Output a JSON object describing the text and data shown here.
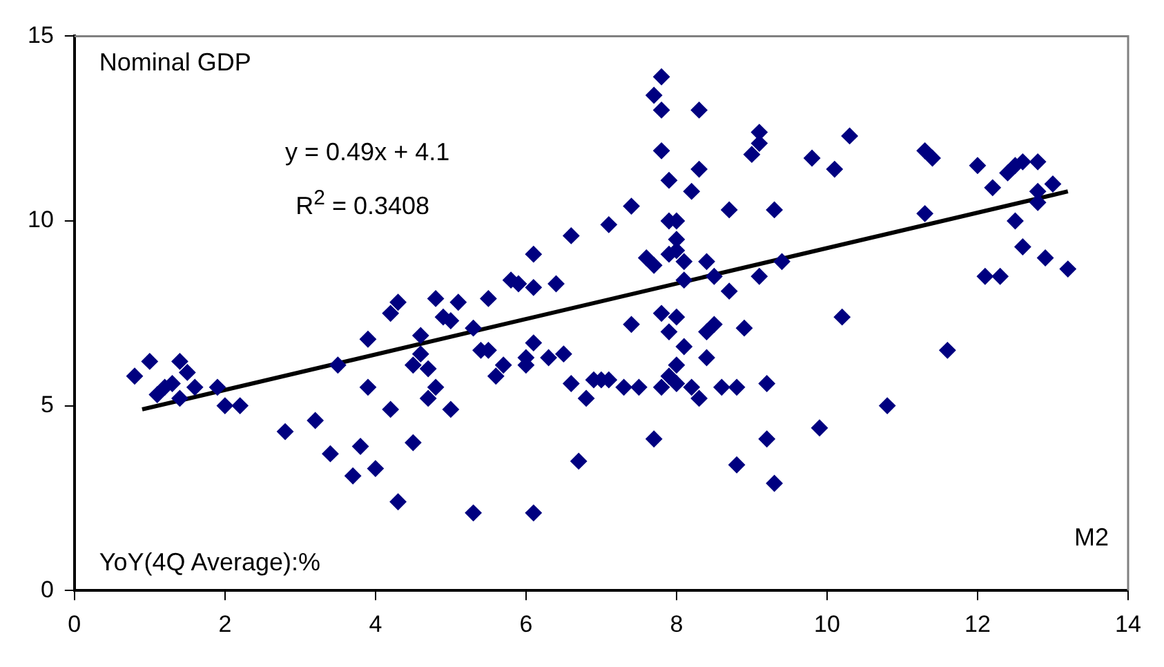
{
  "chart_data": {
    "type": "scatter",
    "xlabel": "M2",
    "ylabel": "Nominal GDP",
    "annotations": [
      "y = 0.49x + 4.1",
      "R$^{2}$ = 0.3408",
      "YoY(4Q Average):%"
    ],
    "xlim": [
      0,
      14
    ],
    "xticks": [
      0,
      2,
      4,
      6,
      8,
      10,
      12,
      14
    ],
    "ylim": [
      0,
      15
    ],
    "yticks": [
      0,
      5,
      10,
      15
    ],
    "grid": false,
    "legend": false,
    "marker": "diamond",
    "series": [
      {
        "color": "#000080",
        "x": [
          0.8,
          1.0,
          1.1,
          1.2,
          1.3,
          1.4,
          1.4,
          1.5,
          1.6,
          1.9,
          2.0,
          2.2,
          2.8,
          3.2,
          3.4,
          3.5,
          3.7,
          3.8,
          3.9,
          4.0,
          3.9,
          4.2,
          4.2,
          4.3,
          4.3,
          4.5,
          4.5,
          4.6,
          4.6,
          4.7,
          4.7,
          4.8,
          4.8,
          4.9,
          5.0,
          5.0,
          5.1,
          5.3,
          5.3,
          5.4,
          5.5,
          5.5,
          5.6,
          5.7,
          5.8,
          5.9,
          6.0,
          6.0,
          6.1,
          6.1,
          6.1,
          6.1,
          6.3,
          6.4,
          6.5,
          6.6,
          6.6,
          6.7,
          6.8,
          6.9,
          7.0,
          7.1,
          7.1,
          7.3,
          7.4,
          7.4,
          7.5,
          7.6,
          7.7,
          7.7,
          7.8,
          7.8,
          7.8,
          7.9,
          7.7,
          7.8,
          7.9,
          7.9,
          8.0,
          8.0,
          8.0,
          8.1,
          8.1,
          8.0,
          7.9,
          8.1,
          8.0,
          7.9,
          7.8,
          8.0,
          8.2,
          8.3,
          8.3,
          8.2,
          8.3,
          8.4,
          8.4,
          8.4,
          8.5,
          8.5,
          8.6,
          8.7,
          8.7,
          8.8,
          8.8,
          8.9,
          9.0,
          9.1,
          9.1,
          9.1,
          9.2,
          9.2,
          9.3,
          9.3,
          9.4,
          9.8,
          9.9,
          10.1,
          10.2,
          10.3,
          10.8,
          11.3,
          11.3,
          11.4,
          11.6,
          12.0,
          12.1,
          12.2,
          12.3,
          12.4,
          12.5,
          12.5,
          12.6,
          12.6,
          12.8,
          12.8,
          12.8,
          12.9,
          13.0,
          13.2
        ],
        "values": [
          5.8,
          6.2,
          5.3,
          5.5,
          5.6,
          6.2,
          5.2,
          5.9,
          5.5,
          5.5,
          5.0,
          5.0,
          4.3,
          4.6,
          3.7,
          6.1,
          3.1,
          3.9,
          6.8,
          3.3,
          5.5,
          4.9,
          7.5,
          7.8,
          2.4,
          4.0,
          6.1,
          6.4,
          6.9,
          5.2,
          6.0,
          7.9,
          5.5,
          7.4,
          7.3,
          4.9,
          7.8,
          2.1,
          7.1,
          6.5,
          7.9,
          6.5,
          5.8,
          6.1,
          8.4,
          8.3,
          6.3,
          6.1,
          8.2,
          9.1,
          6.7,
          2.1,
          6.3,
          8.3,
          6.4,
          9.6,
          5.6,
          3.5,
          5.2,
          5.7,
          5.7,
          9.9,
          5.7,
          5.5,
          10.4,
          7.2,
          5.5,
          9.0,
          4.1,
          13.4,
          13.9,
          13.0,
          11.9,
          11.1,
          8.8,
          7.5,
          10.0,
          9.1,
          10.0,
          9.5,
          9.2,
          8.9,
          8.4,
          7.4,
          7.0,
          6.6,
          6.1,
          5.8,
          5.5,
          5.6,
          5.5,
          5.2,
          13.0,
          10.8,
          11.4,
          8.9,
          7.0,
          6.3,
          8.5,
          7.2,
          5.5,
          8.1,
          10.3,
          3.4,
          5.5,
          7.1,
          11.8,
          12.1,
          12.4,
          8.5,
          4.1,
          5.6,
          2.9,
          10.3,
          8.9,
          11.7,
          4.4,
          11.4,
          7.4,
          12.3,
          5.0,
          11.9,
          10.2,
          11.7,
          6.5,
          11.5,
          8.5,
          10.9,
          8.5,
          11.3,
          11.5,
          10.0,
          11.6,
          9.3,
          11.6,
          10.5,
          10.8,
          9.0,
          11.0,
          8.7
        ]
      },
      {
        "type": "line",
        "color": "#000000",
        "marker": "none",
        "line_style": "solid",
        "x": [
          0.9,
          13.2
        ],
        "values": [
          4.9,
          10.8
        ]
      }
    ]
  }
}
